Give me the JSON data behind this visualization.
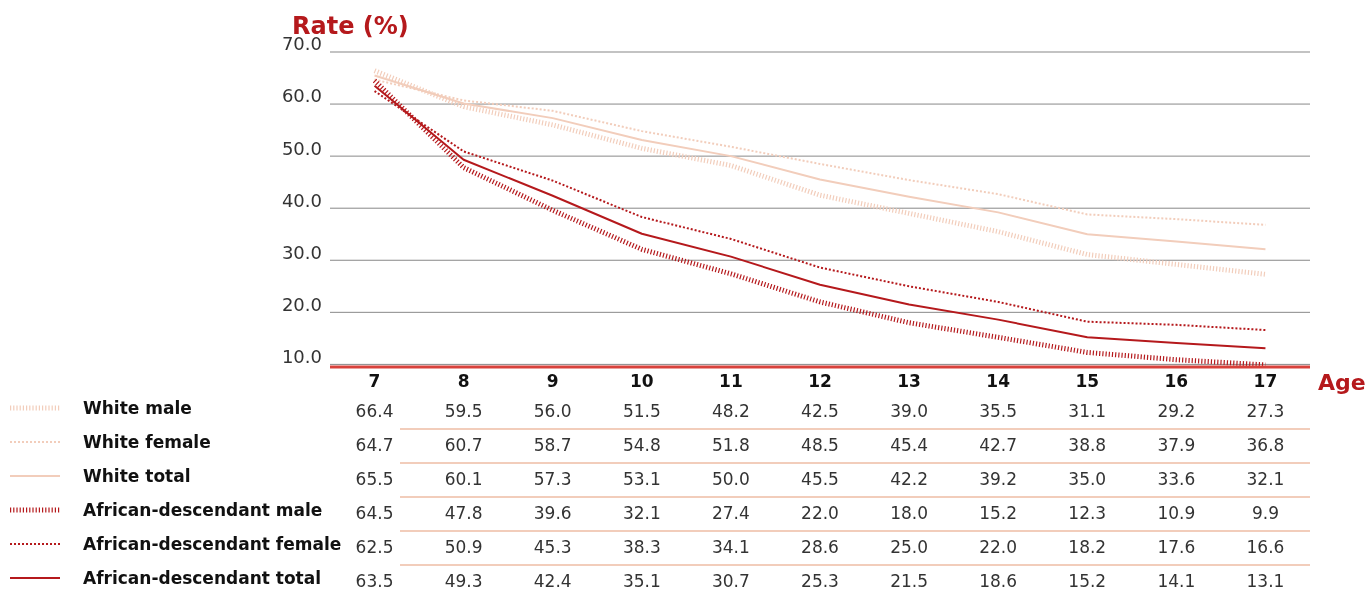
{
  "chart_data": {
    "type": "line",
    "ylabel": "Rate (%)",
    "xlabel": "Age",
    "categories": [
      "7",
      "8",
      "9",
      "10",
      "11",
      "12",
      "13",
      "14",
      "15",
      "16",
      "17"
    ],
    "ylim": [
      9.5,
      70
    ],
    "yticks": [
      {
        "value": 10,
        "label": "10.0"
      },
      {
        "value": 20,
        "label": "20.0"
      },
      {
        "value": 30,
        "label": "30.0"
      },
      {
        "value": 40,
        "label": "40.0"
      },
      {
        "value": 50,
        "label": "50.0"
      },
      {
        "value": 60,
        "label": "60.0"
      },
      {
        "value": 70,
        "label": "70.0"
      }
    ],
    "grid": "y",
    "legend": "bottom left",
    "marker": "none",
    "series": [
      {
        "name": "White male",
        "color": "#f2cdbb",
        "line_style": "dotted",
        "values": [
          66.4,
          59.5,
          56.0,
          51.5,
          48.2,
          42.5,
          39.0,
          35.5,
          31.1,
          29.2,
          27.3
        ],
        "value_labels": [
          "66.4",
          "59.5",
          "56.0",
          "51.5",
          "48.2",
          "42.5",
          "39.0",
          "35.5",
          "31.1",
          "29.2",
          "27.3"
        ]
      },
      {
        "name": "White female",
        "color": "#f2cdbb",
        "line_style": "dashed",
        "values": [
          64.7,
          60.7,
          58.7,
          54.8,
          51.8,
          48.5,
          45.4,
          42.7,
          38.8,
          37.9,
          36.8
        ],
        "value_labels": [
          "64.7",
          "60.7",
          "58.7",
          "54.8",
          "51.8",
          "48.5",
          "45.4",
          "42.7",
          "38.8",
          "37.9",
          "36.8"
        ]
      },
      {
        "name": "White total",
        "color": "#f2cdbb",
        "line_style": "solid",
        "values": [
          65.5,
          60.1,
          57.3,
          53.1,
          50.0,
          45.5,
          42.2,
          39.2,
          35.0,
          33.6,
          32.1
        ],
        "value_labels": [
          "65.5",
          "60.1",
          "57.3",
          "53.1",
          "50.0",
          "45.5",
          "42.2",
          "39.2",
          "35.0",
          "33.6",
          "32.1"
        ]
      },
      {
        "name": "African-descendant male",
        "color": "#b5191c",
        "line_style": "dotted",
        "values": [
          64.5,
          47.8,
          39.6,
          32.1,
          27.4,
          22.0,
          18.0,
          15.2,
          12.3,
          10.9,
          9.9
        ],
        "value_labels": [
          "64.5",
          "47.8",
          "39.6",
          "32.1",
          "27.4",
          "22.0",
          "18.0",
          "15.2",
          "12.3",
          "10.9",
          "9.9"
        ]
      },
      {
        "name": "African-descendant female",
        "color": "#b5191c",
        "line_style": "dashed",
        "values": [
          62.5,
          50.9,
          45.3,
          38.3,
          34.1,
          28.6,
          25.0,
          22.0,
          18.2,
          17.6,
          16.6
        ],
        "value_labels": [
          "62.5",
          "50.9",
          "45.3",
          "38.3",
          "34.1",
          "28.6",
          "25.0",
          "22.0",
          "18.2",
          "17.6",
          "16.6"
        ]
      },
      {
        "name": "African-descendant total",
        "color": "#b5191c",
        "line_style": "solid",
        "values": [
          63.5,
          49.3,
          42.4,
          35.1,
          30.7,
          25.3,
          21.5,
          18.6,
          15.2,
          14.1,
          13.1
        ],
        "value_labels": [
          "63.5",
          "49.3",
          "42.4",
          "35.1",
          "30.7",
          "25.3",
          "21.5",
          "18.6",
          "15.2",
          "14.1",
          "13.1"
        ]
      }
    ]
  }
}
